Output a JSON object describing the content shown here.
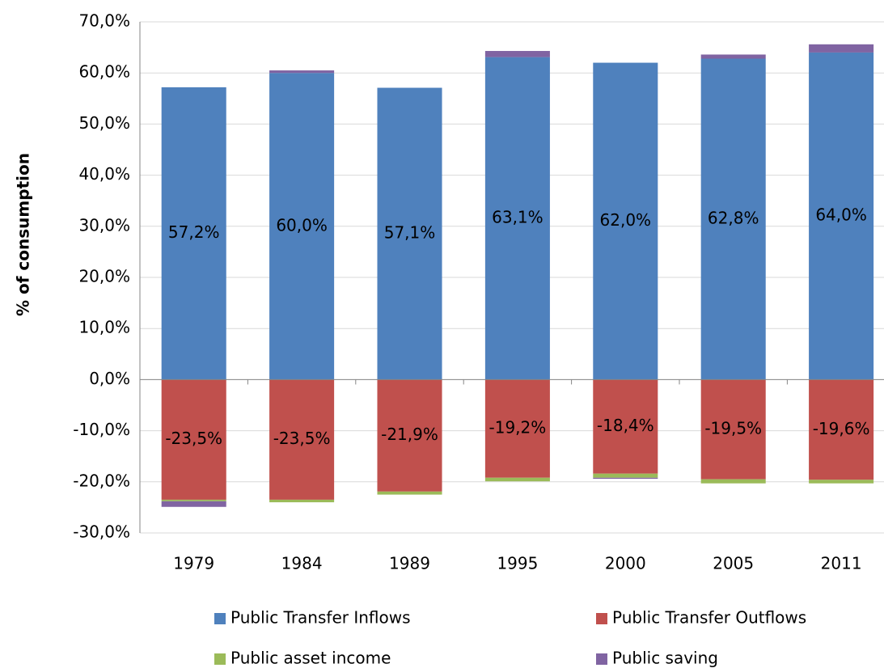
{
  "chart_data": {
    "type": "stacked-bar",
    "y_axis_label": "% of consumption",
    "categories": [
      "1979",
      "1984",
      "1989",
      "1995",
      "2000",
      "2005",
      "2011"
    ],
    "series": [
      {
        "name": "Public Transfer Inflows",
        "color": "#4f81bd",
        "values": [
          57.2,
          60.0,
          57.1,
          63.1,
          62.0,
          62.8,
          64.0
        ],
        "value_labels": [
          "57,2%",
          "60,0%",
          "57,1%",
          "63,1%",
          "62,0%",
          "62,8%",
          "64,0%"
        ]
      },
      {
        "name": "Public Transfer Outflows",
        "color": "#c0504d",
        "values": [
          -23.5,
          -23.5,
          -21.9,
          -19.2,
          -18.4,
          -19.5,
          -19.6
        ],
        "value_labels": [
          "-23,5%",
          "-23,5%",
          "-21,9%",
          "-19,2%",
          "-18,4%",
          "-19,5%",
          "-19,6%"
        ]
      },
      {
        "name": "Public asset income",
        "color": "#9bbb59",
        "values": [
          -0.3,
          -0.5,
          -0.6,
          -0.7,
          -0.8,
          -0.8,
          -0.7
        ]
      },
      {
        "name": "Public saving",
        "color": "#8064a2",
        "values": [
          -1.1,
          0.5,
          0,
          1.2,
          -0.2,
          0.8,
          1.6
        ]
      }
    ],
    "ylim": [
      -30,
      70
    ],
    "yticks": [
      {
        "value": -30,
        "label": "-30,0%"
      },
      {
        "value": -20,
        "label": "-20,0%"
      },
      {
        "value": -10,
        "label": "-10,0%"
      },
      {
        "value": 0,
        "label": "0,0%"
      },
      {
        "value": 10,
        "label": "10,0%"
      },
      {
        "value": 20,
        "label": "20,0%"
      },
      {
        "value": 30,
        "label": "30,0%"
      },
      {
        "value": 40,
        "label": "40,0%"
      },
      {
        "value": 50,
        "label": "50,0%"
      },
      {
        "value": 60,
        "label": "60,0%"
      },
      {
        "value": 70,
        "label": "70,0%"
      }
    ],
    "grid": true
  }
}
